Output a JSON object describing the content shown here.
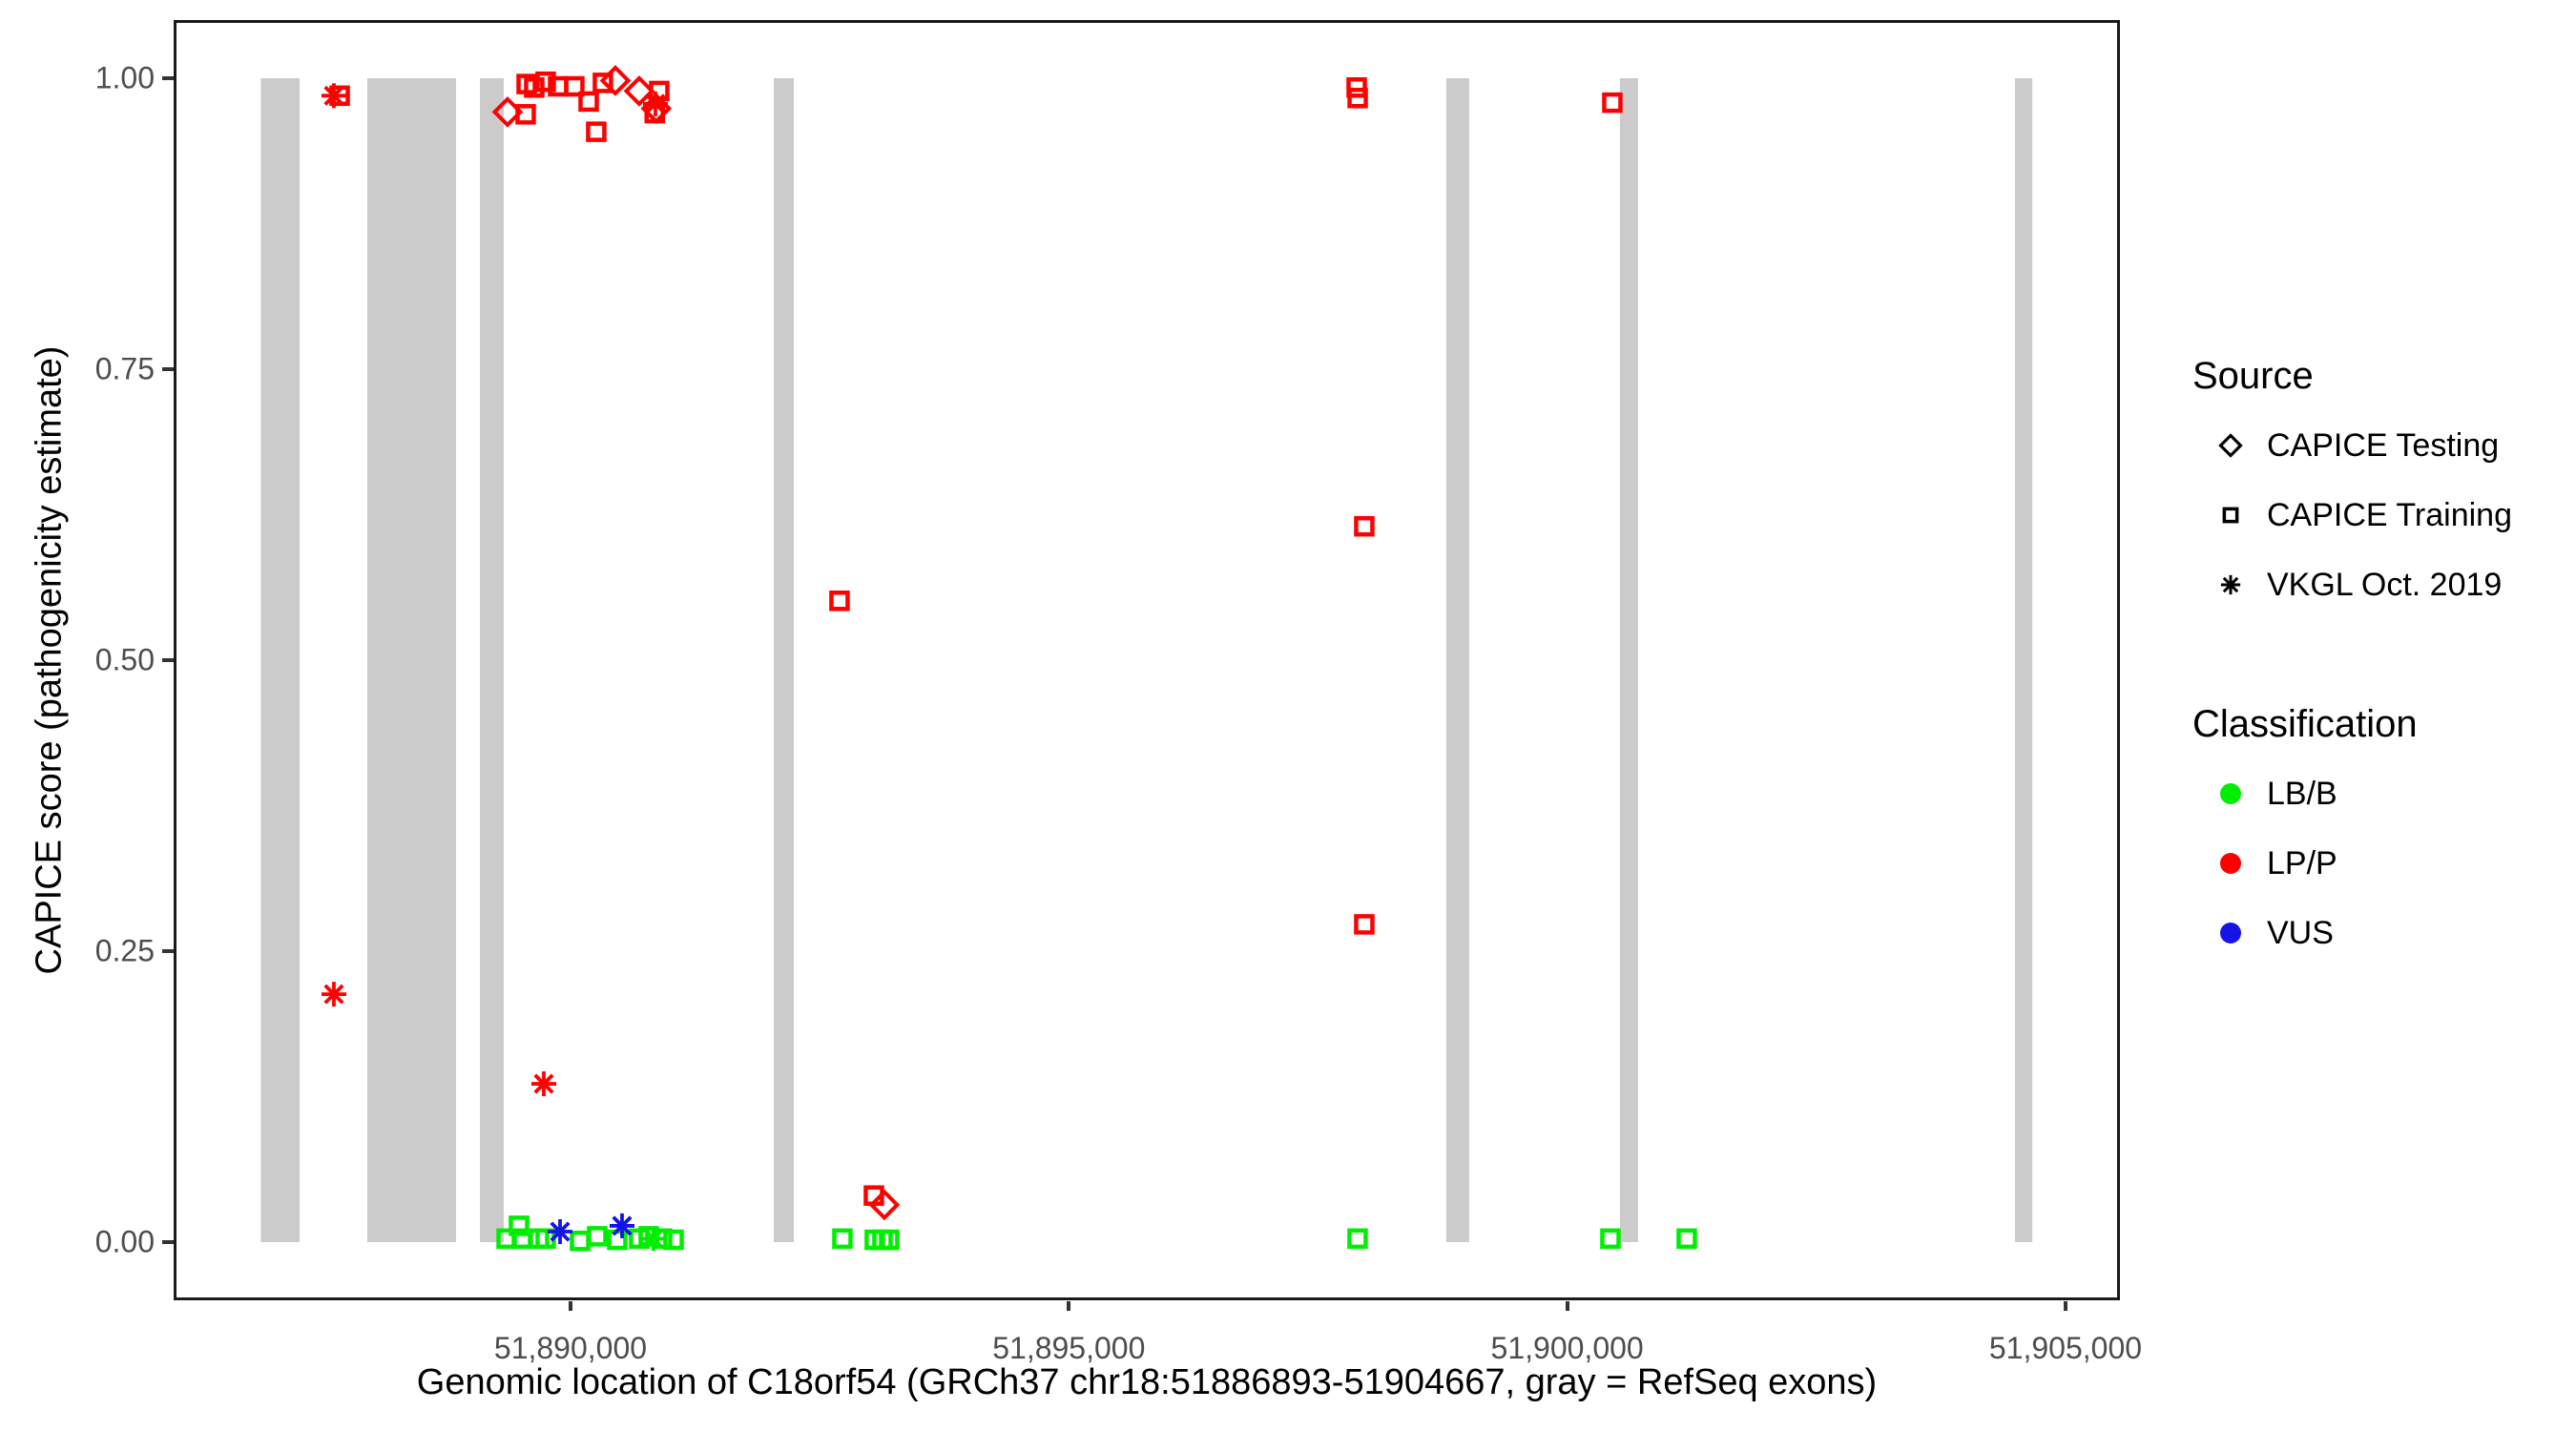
{
  "figure": {
    "x_axis_title": "Genomic location of C18orf54 (GRCh37 chr18:51886893-51904667, gray = RefSeq exons)",
    "y_axis_title": "CAPICE score (pathogenicity estimate)"
  },
  "legend": {
    "source_title": "Source",
    "source_items": [
      {
        "label": "CAPICE Testing",
        "marker": "diamond"
      },
      {
        "label": "CAPICE Training",
        "marker": "square"
      },
      {
        "label": "VKGL Oct. 2019",
        "marker": "asterisk"
      }
    ],
    "class_title": "Classification",
    "class_items": [
      {
        "label": "LB/B",
        "color": "#00EE00"
      },
      {
        "label": "LP/P",
        "color": "#FF0000"
      },
      {
        "label": "VUS",
        "color": "#1414E8"
      }
    ]
  },
  "colors": {
    "LB/B": "#00EE00",
    "LP/P": "#FF0000",
    "VUS": "#1414E8",
    "exon": "#CBCBCB",
    "axis_text": "#4d4d4d",
    "panel_border": "#1a1a1a"
  },
  "chart_data": {
    "type": "scatter",
    "title": "",
    "xlabel": "Genomic location of C18orf54 (GRCh37 chr18:51886893-51904667, gray = RefSeq exons)",
    "ylabel": "CAPICE score (pathogenicity estimate)",
    "xlim": [
      51886018,
      51905546
    ],
    "ylim": [
      -0.05,
      1.05
    ],
    "grid": false,
    "legend_position": "right",
    "x_ticks": [
      {
        "value": 51890000,
        "label": "51,890,000"
      },
      {
        "value": 51895000,
        "label": "51,895,000"
      },
      {
        "value": 51900000,
        "label": "51,900,000"
      },
      {
        "value": 51905000,
        "label": "51,905,000"
      }
    ],
    "y_ticks": [
      {
        "value": 0.0,
        "label": "0.00"
      },
      {
        "value": 0.25,
        "label": "0.25"
      },
      {
        "value": 0.5,
        "label": "0.50"
      },
      {
        "value": 0.75,
        "label": "0.75"
      },
      {
        "value": 1.0,
        "label": "1.00"
      }
    ],
    "exons_refseq_bp": [
      [
        51886893,
        51887282
      ],
      [
        51887961,
        51888851
      ],
      [
        51889091,
        51889330
      ],
      [
        51892039,
        51892240
      ],
      [
        51898787,
        51899017
      ],
      [
        51900529,
        51900711
      ],
      [
        51904492,
        51904667
      ]
    ],
    "points": [
      {
        "source": "VKGL Oct. 2019",
        "classification": "LP/P",
        "x": 51887626,
        "y": 0.985
      },
      {
        "source": "CAPICE Training",
        "classification": "LP/P",
        "x": 51887684,
        "y": 0.985
      },
      {
        "source": "VKGL Oct. 2019",
        "classification": "LP/P",
        "x": 51887626,
        "y": 0.213
      },
      {
        "source": "VKGL Oct. 2019",
        "classification": "LP/P",
        "x": 51889732,
        "y": 0.136
      },
      {
        "source": "CAPICE Testing",
        "classification": "LP/P",
        "x": 51889368,
        "y": 0.971
      },
      {
        "source": "CAPICE Training",
        "classification": "LP/P",
        "x": 51889550,
        "y": 0.969
      },
      {
        "source": "CAPICE Training",
        "classification": "LP/P",
        "x": 51889560,
        "y": 0.995
      },
      {
        "source": "CAPICE Training",
        "classification": "LP/P",
        "x": 51889636,
        "y": 0.992
      },
      {
        "source": "CAPICE Training",
        "classification": "LP/P",
        "x": 51889751,
        "y": 0.997
      },
      {
        "source": "CAPICE Training",
        "classification": "LP/P",
        "x": 51889876,
        "y": 0.993
      },
      {
        "source": "CAPICE Training",
        "classification": "LP/P",
        "x": 51890038,
        "y": 0.993
      },
      {
        "source": "CAPICE Training",
        "classification": "LP/P",
        "x": 51890182,
        "y": 0.98
      },
      {
        "source": "CAPICE Training",
        "classification": "LP/P",
        "x": 51890258,
        "y": 0.954
      },
      {
        "source": "CAPICE Training",
        "classification": "LP/P",
        "x": 51890325,
        "y": 0.996
      },
      {
        "source": "CAPICE Testing",
        "classification": "LP/P",
        "x": 51890450,
        "y": 0.998
      },
      {
        "source": "CAPICE Testing",
        "classification": "LP/P",
        "x": 51890689,
        "y": 0.989
      },
      {
        "source": "CAPICE Training",
        "classification": "LP/P",
        "x": 51890890,
        "y": 0.989
      },
      {
        "source": "VKGL Oct. 2019",
        "classification": "LP/P",
        "x": 51890852,
        "y": 0.978
      },
      {
        "source": "CAPICE Testing",
        "classification": "LP/P",
        "x": 51890860,
        "y": 0.974
      },
      {
        "source": "CAPICE Training",
        "classification": "LP/P",
        "x": 51890845,
        "y": 0.97
      },
      {
        "source": "CAPICE Training",
        "classification": "LP/P",
        "x": 51892699,
        "y": 0.551
      },
      {
        "source": "CAPICE Training",
        "classification": "LP/P",
        "x": 51893044,
        "y": 0.04
      },
      {
        "source": "CAPICE Testing",
        "classification": "LP/P",
        "x": 51893149,
        "y": 0.032
      },
      {
        "source": "CAPICE Training",
        "classification": "LP/P",
        "x": 51897888,
        "y": 0.992
      },
      {
        "source": "CAPICE Training",
        "classification": "LP/P",
        "x": 51897898,
        "y": 0.983
      },
      {
        "source": "CAPICE Training",
        "classification": "LP/P",
        "x": 51897964,
        "y": 0.615
      },
      {
        "source": "CAPICE Training",
        "classification": "LP/P",
        "x": 51897964,
        "y": 0.273
      },
      {
        "source": "CAPICE Training",
        "classification": "LP/P",
        "x": 51900453,
        "y": 0.979
      },
      {
        "source": "CAPICE Training",
        "classification": "LB/B",
        "x": 51889359,
        "y": 0.003
      },
      {
        "source": "CAPICE Training",
        "classification": "LB/B",
        "x": 51889483,
        "y": 0.014
      },
      {
        "source": "CAPICE Training",
        "classification": "LB/B",
        "x": 51889512,
        "y": 0.003
      },
      {
        "source": "CAPICE Training",
        "classification": "LB/B",
        "x": 51889684,
        "y": 0.003
      },
      {
        "source": "CAPICE Training",
        "classification": "LB/B",
        "x": 51889751,
        "y": 0.003
      },
      {
        "source": "CAPICE Training",
        "classification": "LB/B",
        "x": 51890096,
        "y": 0.001
      },
      {
        "source": "CAPICE Training",
        "classification": "LB/B",
        "x": 51890268,
        "y": 0.005
      },
      {
        "source": "CAPICE Training",
        "classification": "LB/B",
        "x": 51890469,
        "y": 0.002
      },
      {
        "source": "CAPICE Training",
        "classification": "LB/B",
        "x": 51890689,
        "y": 0.003
      },
      {
        "source": "CAPICE Training",
        "classification": "LB/B",
        "x": 51890785,
        "y": 0.005
      },
      {
        "source": "VKGL Oct. 2019",
        "classification": "LB/B",
        "x": 51890833,
        "y": 0.003
      },
      {
        "source": "CAPICE Training",
        "classification": "LB/B",
        "x": 51890919,
        "y": 0.003
      },
      {
        "source": "CAPICE Training",
        "classification": "LB/B",
        "x": 51891034,
        "y": 0.002
      },
      {
        "source": "CAPICE Training",
        "classification": "LB/B",
        "x": 51892728,
        "y": 0.003
      },
      {
        "source": "CAPICE Training",
        "classification": "LB/B",
        "x": 51893053,
        "y": 0.002
      },
      {
        "source": "CAPICE Training",
        "classification": "LB/B",
        "x": 51893130,
        "y": 0.002
      },
      {
        "source": "CAPICE Training",
        "classification": "LB/B",
        "x": 51893197,
        "y": 0.002
      },
      {
        "source": "CAPICE Training",
        "classification": "LB/B",
        "x": 51897897,
        "y": 0.003
      },
      {
        "source": "CAPICE Training",
        "classification": "LB/B",
        "x": 51900434,
        "y": 0.003
      },
      {
        "source": "CAPICE Training",
        "classification": "LB/B",
        "x": 51901200,
        "y": 0.003
      },
      {
        "source": "VKGL Oct. 2019",
        "classification": "VUS",
        "x": 51889895,
        "y": 0.009
      },
      {
        "source": "VKGL Oct. 2019",
        "classification": "VUS",
        "x": 51890517,
        "y": 0.014
      }
    ]
  }
}
